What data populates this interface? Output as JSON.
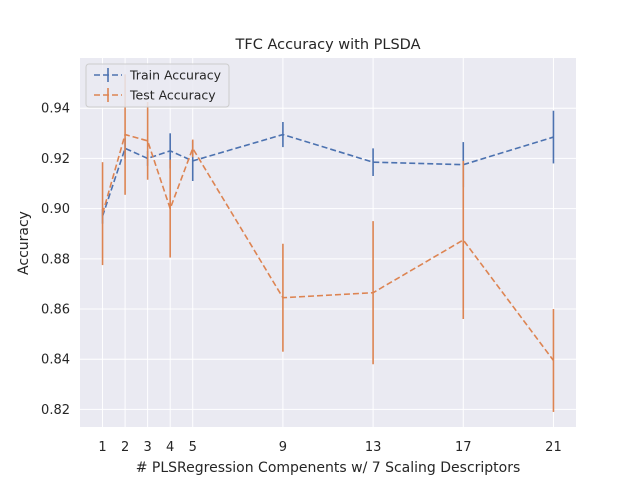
{
  "chart_data": {
    "type": "line",
    "title": "TFC Accuracy with PLSDA",
    "xlabel": "# PLSRegression Compenents w/ 7 Scaling Descriptors",
    "ylabel": "Accuracy",
    "x": [
      1,
      2,
      3,
      4,
      5,
      9,
      13,
      17,
      21
    ],
    "xticks": [
      "1",
      "2",
      "3",
      "4",
      "5",
      "9",
      "13",
      "17",
      "21"
    ],
    "yticks": [
      "0.82",
      "0.84",
      "0.86",
      "0.88",
      "0.90",
      "0.92",
      "0.94"
    ],
    "xlim": [
      0,
      22
    ],
    "ylim": [
      0.813,
      0.96
    ],
    "grid": true,
    "legend_position": "top-left",
    "series": [
      {
        "name": "Train Accuracy",
        "color": "#4c72b0",
        "linestyle": "dashed",
        "values": [
          0.897,
          0.924,
          0.92,
          0.923,
          0.919,
          0.9295,
          0.9185,
          0.9175,
          0.9285
        ],
        "errors": [
          0.003,
          0.004,
          0.003,
          0.007,
          0.008,
          0.005,
          0.0055,
          0.009,
          0.0105
        ]
      },
      {
        "name": "Test Accuracy",
        "color": "#dd8452",
        "linestyle": "dashed",
        "values": [
          0.898,
          0.9295,
          0.927,
          0.9,
          0.924,
          0.8645,
          0.8665,
          0.8875,
          0.8395
        ],
        "errors": [
          0.0205,
          0.024,
          0.0155,
          0.0195,
          0.0035,
          0.0215,
          0.0285,
          0.0315,
          0.0205
        ]
      }
    ]
  },
  "colors": {
    "plot_background": "#eaeaf2",
    "grid": "#ffffff",
    "text": "#262626"
  }
}
